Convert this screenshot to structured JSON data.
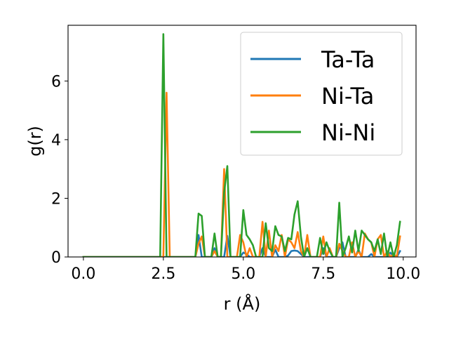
{
  "chart_data": {
    "type": "line",
    "title": "",
    "xlabel": "r (Å)",
    "ylabel": "g(r)",
    "xlim": [
      -0.48,
      10.4
    ],
    "ylim": [
      0,
      7.9
    ],
    "x_ticks": [
      0.0,
      2.5,
      5.0,
      7.5,
      10.0
    ],
    "x_tick_labels": [
      "0.0",
      "2.5",
      "5.0",
      "7.5",
      "10.0"
    ],
    "y_ticks": [
      0,
      2,
      4,
      6
    ],
    "y_tick_labels": [
      "0",
      "2",
      "4",
      "6"
    ],
    "grid": false,
    "legend_position": "top-right",
    "x": [
      0.0,
      0.1,
      0.2,
      0.3,
      0.4,
      0.5,
      0.6,
      0.7,
      0.8,
      0.9,
      1.0,
      1.1,
      1.2,
      1.3,
      1.4,
      1.5,
      1.6,
      1.7,
      1.8,
      1.9,
      2.0,
      2.1,
      2.2,
      2.3,
      2.4,
      2.5,
      2.6,
      2.7,
      2.8,
      2.9,
      3.0,
      3.1,
      3.2,
      3.3,
      3.4,
      3.5,
      3.6,
      3.7,
      3.8,
      3.9,
      4.0,
      4.1,
      4.2,
      4.3,
      4.4,
      4.5,
      4.6,
      4.7,
      4.8,
      4.9,
      5.0,
      5.1,
      5.2,
      5.3,
      5.4,
      5.5,
      5.6,
      5.7,
      5.8,
      5.9,
      6.0,
      6.1,
      6.2,
      6.3,
      6.4,
      6.5,
      6.6,
      6.7,
      6.8,
      6.9,
      7.0,
      7.1,
      7.2,
      7.3,
      7.4,
      7.5,
      7.6,
      7.7,
      7.8,
      7.9,
      8.0,
      8.1,
      8.2,
      8.3,
      8.4,
      8.5,
      8.6,
      8.7,
      8.8,
      8.9,
      9.0,
      9.1,
      9.2,
      9.3,
      9.4,
      9.5,
      9.6,
      9.7,
      9.8,
      9.9
    ],
    "series": [
      {
        "name": "Ta-Ta",
        "color": "#1f77b4",
        "values": [
          0,
          0,
          0,
          0,
          0,
          0,
          0,
          0,
          0,
          0,
          0,
          0,
          0,
          0,
          0,
          0,
          0,
          0,
          0,
          0,
          0,
          0,
          0,
          0,
          0,
          0,
          0,
          0,
          0,
          0,
          0,
          0,
          0,
          0,
          0,
          0,
          0.75,
          0,
          0,
          0,
          0,
          0.3,
          0,
          0,
          0,
          0.72,
          0,
          0,
          0,
          0,
          0.15,
          0.1,
          0,
          0,
          0,
          0,
          0.3,
          0,
          0,
          0,
          0.25,
          0,
          0,
          0,
          0.05,
          0.2,
          0.22,
          0.2,
          0.1,
          0,
          0,
          0,
          0,
          0,
          0,
          0.3,
          0,
          0,
          0,
          0,
          0.3,
          0.5,
          0,
          0,
          0,
          0,
          0.25,
          0,
          0,
          0,
          0.1,
          0,
          0,
          0,
          0,
          0,
          0.15,
          0,
          0,
          0.2
        ]
      },
      {
        "name": "Ni-Ta",
        "color": "#ff7f0e",
        "values": [
          0,
          0,
          0,
          0,
          0,
          0,
          0,
          0,
          0,
          0,
          0,
          0,
          0,
          0,
          0,
          0,
          0,
          0,
          0,
          0,
          0,
          0,
          0,
          0,
          0,
          0,
          5.6,
          0,
          0,
          0,
          0,
          0,
          0,
          0,
          0,
          0,
          0.45,
          0.7,
          0,
          0,
          0,
          0.2,
          0,
          0,
          3.0,
          0,
          0,
          0,
          0,
          0.75,
          0.5,
          0,
          0.3,
          0,
          0,
          0,
          1.2,
          0,
          0.9,
          0,
          0.4,
          0.2,
          0.75,
          0,
          0.6,
          0.5,
          0.3,
          0.85,
          0.2,
          0,
          0.75,
          0,
          0,
          0,
          0,
          0.7,
          0,
          0.3,
          0,
          0,
          0.45,
          0.2,
          0,
          0,
          0.5,
          0,
          0.2,
          0,
          0.8,
          0.6,
          0.5,
          0,
          0.6,
          0.75,
          0,
          0.2,
          0,
          0.1,
          0,
          0.7
        ]
      },
      {
        "name": "Ni-Ni",
        "color": "#2ca02c",
        "values": [
          0,
          0,
          0,
          0,
          0,
          0,
          0,
          0,
          0,
          0,
          0,
          0,
          0,
          0,
          0,
          0,
          0,
          0,
          0,
          0,
          0,
          0,
          0,
          0,
          0,
          7.6,
          0,
          0,
          0,
          0,
          0,
          0,
          0,
          0,
          0,
          0,
          1.48,
          1.4,
          0,
          0,
          0,
          0.8,
          0,
          0,
          2.2,
          3.1,
          0,
          0,
          0,
          0,
          1.6,
          0.75,
          0.6,
          0.4,
          0,
          0,
          0,
          1.15,
          0.3,
          0.2,
          1.05,
          0.75,
          0.7,
          0.2,
          0.65,
          0.6,
          1.45,
          1.9,
          0.7,
          0,
          0.3,
          0,
          0,
          0,
          0.65,
          0.1,
          0.5,
          0.2,
          0,
          0,
          1.85,
          0,
          0.3,
          0.7,
          0.15,
          0.9,
          0.2,
          0.9,
          0.75,
          0.6,
          0.5,
          0.2,
          0.6,
          0.1,
          0.8,
          0,
          0.5,
          0,
          0.4,
          1.2
        ]
      }
    ]
  }
}
